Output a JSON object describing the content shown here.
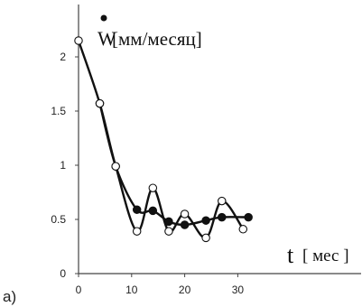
{
  "panel_label": "a)",
  "chart_data": {
    "type": "line",
    "title": "",
    "ylabel": {
      "symbol": "W",
      "unit": "[мм/месяц]"
    },
    "xlabel": {
      "symbol": "t",
      "unit": "[ мес ]"
    },
    "xlim": [
      0,
      35
    ],
    "ylim": [
      0,
      2.4
    ],
    "x_ticks": [
      0,
      10,
      20,
      30
    ],
    "x_tick_labels": [
      "0",
      "10",
      "20",
      "30"
    ],
    "y_ticks": [
      0,
      0.5,
      1,
      1.5,
      2
    ],
    "y_tick_labels": [
      "0",
      "0.5",
      "1",
      "1.5",
      "2"
    ],
    "grid": false,
    "series": [
      {
        "marker": "open-circle",
        "points": [
          {
            "x": 0,
            "y": 2.15
          },
          {
            "x": 4,
            "y": 1.57
          },
          {
            "x": 7,
            "y": 0.99
          },
          {
            "x": 11,
            "y": 0.39
          },
          {
            "x": 14,
            "y": 0.79
          },
          {
            "x": 17,
            "y": 0.39
          },
          {
            "x": 20,
            "y": 0.55
          },
          {
            "x": 24,
            "y": 0.33
          },
          {
            "x": 27,
            "y": 0.67
          },
          {
            "x": 31,
            "y": 0.41
          }
        ]
      },
      {
        "marker": "filled-circle",
        "points": [
          {
            "x": 4,
            "y": 1.57
          },
          {
            "x": 7,
            "y": 0.99
          },
          {
            "x": 11,
            "y": 0.59
          },
          {
            "x": 14,
            "y": 0.58
          },
          {
            "x": 17,
            "y": 0.48
          },
          {
            "x": 20,
            "y": 0.45
          },
          {
            "x": 24,
            "y": 0.49
          },
          {
            "x": 27,
            "y": 0.52
          },
          {
            "x": 32,
            "y": 0.52
          }
        ]
      }
    ]
  }
}
